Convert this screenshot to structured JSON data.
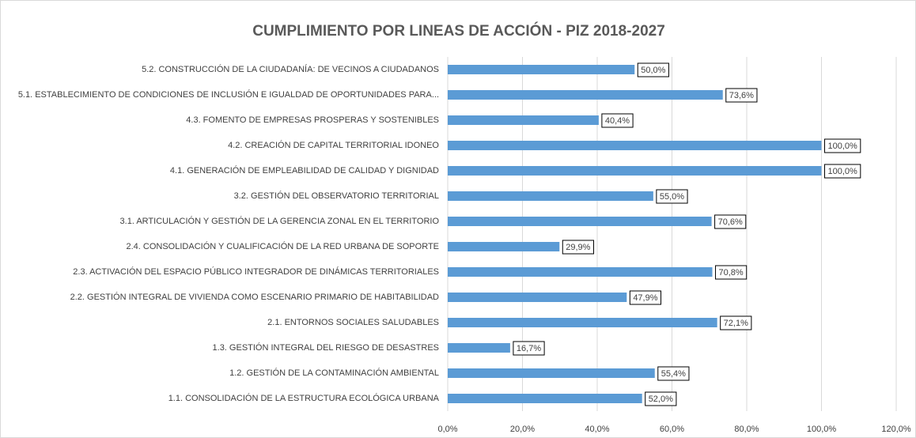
{
  "chart_data": {
    "type": "barh",
    "title": "CUMPLIMIENTO POR LINEAS DE ACCIÓN - PIZ 2018-2027",
    "categories": [
      "5.2. CONSTRUCCIÓN DE LA CIUDADANÍA: DE VECINOS A CIUDADANOS",
      "5.1. ESTABLECIMIENTO DE CONDICIONES DE INCLUSIÓN E IGUALDAD DE OPORTUNIDADES PARA...",
      "4.3. FOMENTO DE EMPRESAS PROSPERAS Y SOSTENIBLES",
      "4.2. CREACIÓN DE CAPITAL TERRITORIAL IDONEO",
      "4.1. GENERACIÓN  DE EMPLEABILIDAD DE CALIDAD Y DIGNIDAD",
      "3.2. GESTIÓN DEL OBSERVATORIO TERRITORIAL",
      "3.1. ARTICULACIÓN Y GESTIÓN DE LA GERENCIA ZONAL EN EL TERRITORIO",
      "2.4. CONSOLIDACIÓN Y CUALIFICACIÓN DE LA RED URBANA DE SOPORTE",
      "2.3. ACTIVACIÓN DEL ESPACIO PÚBLICO INTEGRADOR DE DINÁMICAS TERRITORIALES",
      "2.2. GESTIÓN INTEGRAL DE VIVIENDA COMO ESCENARIO PRIMARIO DE HABITABILIDAD",
      "2.1. ENTORNOS SOCIALES SALUDABLES",
      "1.3. GESTIÓN INTEGRAL DEL RIESGO DE DESASTRES",
      "1.2. GESTIÓN DE LA CONTAMINACIÓN AMBIENTAL",
      "1.1. CONSOLIDACIÓN DE LA ESTRUCTURA ECOLÓGICA URBANA"
    ],
    "values": [
      50.0,
      73.6,
      40.4,
      100,
      100,
      55.0,
      70.6,
      29.9,
      70.8,
      47.9,
      72.1,
      16.7,
      55.4,
      52.0
    ],
    "value_labels": [
      "50,0%",
      "73,6%",
      "40,4%",
      "100,0%",
      "100,0%",
      "55,0%",
      "70,6%",
      "29,9%",
      "70,8%",
      "47,9%",
      "72,1%",
      "16,7%",
      "55,4%",
      "52,0%"
    ],
    "color": "#5b9bd5",
    "xlim": [
      0,
      120
    ],
    "xticks": [
      {
        "value": 0,
        "label": "0,0%"
      },
      {
        "value": 20,
        "label": "20,0%"
      },
      {
        "value": 40,
        "label": "40,0%"
      },
      {
        "value": 60,
        "label": "60,0%"
      },
      {
        "value": 80,
        "label": "80,0%"
      },
      {
        "value": 100,
        "label": "100,0%"
      },
      {
        "value": 120,
        "label": "120,0%"
      }
    ],
    "grid": true
  }
}
